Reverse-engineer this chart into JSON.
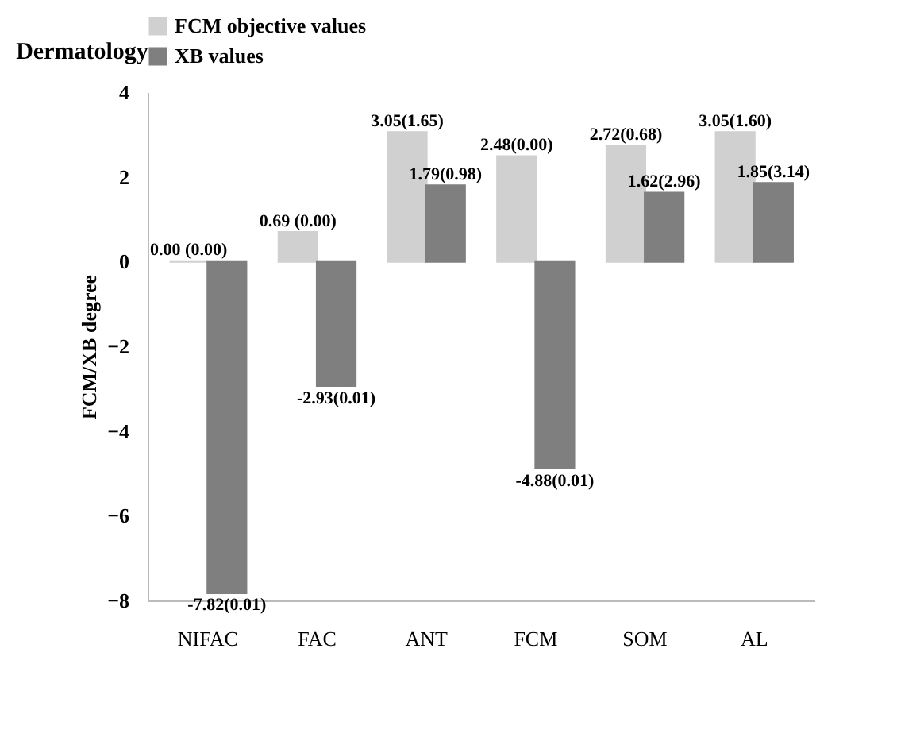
{
  "chart_data": {
    "type": "bar",
    "title": "Dermatology",
    "ylabel": "FCM/XB degree",
    "categories": [
      "NIFAC",
      "FAC",
      "ANT",
      "FCM",
      "SOM",
      "AL"
    ],
    "series": [
      {
        "name": "FCM objective values",
        "color": "#d0d0d0",
        "values": [
          0.0,
          0.69,
          3.05,
          2.48,
          2.72,
          3.05
        ],
        "value_labels": [
          "0.00 (0.00)",
          "0.69 (0.00)",
          "3.05(1.65)",
          "2.48(0.00)",
          "2.72(0.68)",
          "3.05(1.60)"
        ]
      },
      {
        "name": "XB values",
        "color": "#7f7f7f",
        "values": [
          -7.82,
          -2.93,
          1.79,
          -4.88,
          1.62,
          1.85
        ],
        "value_labels": [
          "-7.82(0.01)",
          "-2.93(0.01)",
          "1.79(0.98)",
          "-4.88(0.01)",
          "1.62(2.96)",
          "1.85(3.14)"
        ]
      }
    ],
    "ylim": [
      -8,
      4
    ],
    "yticks": [
      -8,
      -6,
      -4,
      -2,
      0,
      2,
      4
    ],
    "grid": false,
    "legend": "top"
  }
}
